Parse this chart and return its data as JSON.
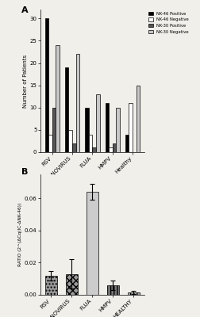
{
  "panel_A": {
    "categories": [
      "RSV",
      "ADENOVIRUS",
      "FLUA",
      "HMPV",
      "Healthy"
    ],
    "nk46_pos": [
      30,
      19,
      10,
      11,
      4
    ],
    "nk46_neg": [
      4,
      5,
      4,
      1,
      11
    ],
    "nk30_pos": [
      10,
      2,
      1,
      2,
      0
    ],
    "nk30_neg": [
      24,
      22,
      13,
      10,
      15
    ],
    "ylabel": "Number of Patients",
    "ylim": [
      0,
      32
    ],
    "yticks": [
      0,
      5,
      10,
      15,
      20,
      25,
      30
    ],
    "legend_labels": [
      "NK-46 Positive",
      "NK-46 Negative",
      "NK-30 Positive",
      "NK-30 Negative"
    ],
    "bar_colors": [
      "#000000",
      "#ffffff",
      "#555555",
      "#c8c8c8"
    ],
    "bar_edgecolors": [
      "#000000",
      "#000000",
      "#000000",
      "#000000"
    ]
  },
  "panel_B": {
    "categories": [
      "RSV",
      "ADENOVIRUS",
      "FLUA",
      "HMPV",
      "HEALTHY"
    ],
    "values": [
      0.012,
      0.013,
      0.064,
      0.006,
      0.0015
    ],
    "errors": [
      0.003,
      0.009,
      0.005,
      0.003,
      0.001
    ],
    "ylabel": "RATIO (2^(ΔCq(IC-ΔNK-46))",
    "ylim": [
      0,
      0.075
    ],
    "yticks": [
      0.0,
      0.02,
      0.04,
      0.06
    ],
    "hatch_patterns": [
      "....",
      "xxxx",
      "====",
      "||||",
      "||||"
    ],
    "bar_colors": [
      "#999999",
      "#999999",
      "#cccccc",
      "#777777",
      "#aaaaaa"
    ],
    "bar_edgecolors": [
      "#000000",
      "#000000",
      "#000000",
      "#000000",
      "#000000"
    ]
  },
  "background_color": "#f0efea",
  "figure_label_A": "A",
  "figure_label_B": "B"
}
